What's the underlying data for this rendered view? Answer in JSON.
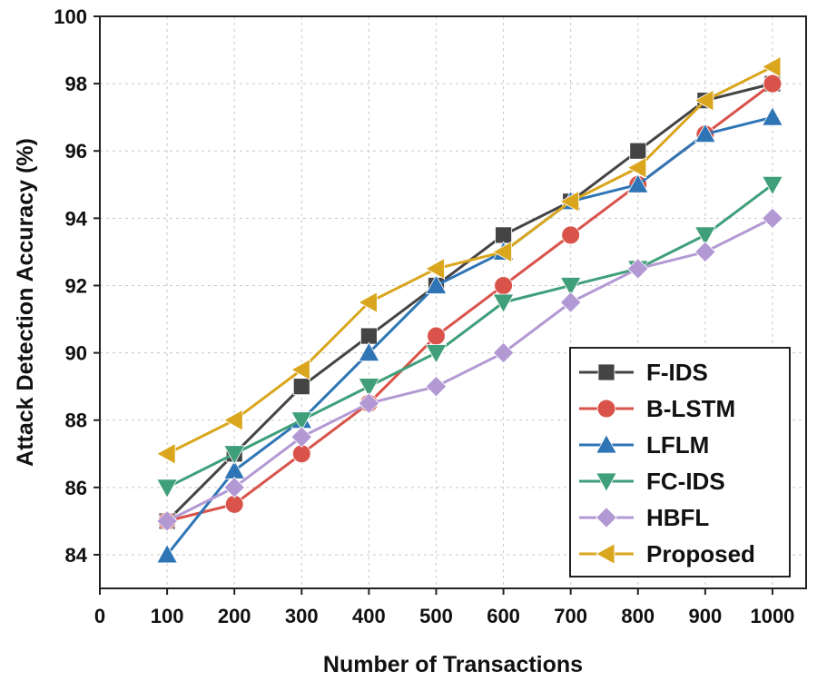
{
  "chart_data": {
    "type": "line",
    "title": "",
    "xlabel": "Number of Transactions",
    "ylabel": "Attack Detection Accuracy (%)",
    "x": [
      100,
      200,
      300,
      400,
      500,
      600,
      700,
      800,
      900,
      1000
    ],
    "xlim": [
      0,
      1050
    ],
    "ylim": [
      83,
      100
    ],
    "x_ticks": [
      0,
      100,
      200,
      300,
      400,
      500,
      600,
      700,
      800,
      900,
      1000
    ],
    "y_ticks": [
      84,
      86,
      88,
      90,
      92,
      94,
      96,
      98,
      100
    ],
    "grid": true,
    "legend_position": "bottom-right",
    "series": [
      {
        "name": "F-IDS",
        "color": "#444444",
        "marker": "square",
        "values": [
          85,
          87,
          89,
          90.5,
          92,
          93.5,
          94.5,
          96,
          97.5,
          98
        ]
      },
      {
        "name": "B-LSTM",
        "color": "#d9534a",
        "marker": "circle",
        "values": [
          85,
          85.5,
          87,
          88.5,
          90.5,
          92,
          93.5,
          95,
          96.5,
          98
        ]
      },
      {
        "name": "LFLM",
        "color": "#2f75b5",
        "marker": "triangle-up",
        "values": [
          84,
          86.5,
          88,
          90,
          92,
          93,
          94.5,
          95,
          96.5,
          97
        ]
      },
      {
        "name": "FC-IDS",
        "color": "#3f9f7a",
        "marker": "triangle-down",
        "values": [
          86,
          87,
          88,
          89,
          90,
          91.5,
          92,
          92.5,
          93.5,
          95
        ]
      },
      {
        "name": "HBFL",
        "color": "#b399d4",
        "marker": "diamond",
        "values": [
          85,
          86,
          87.5,
          88.5,
          89,
          90,
          91.5,
          92.5,
          93,
          94
        ]
      },
      {
        "name": "Proposed",
        "color": "#d9a61e",
        "marker": "triangle-left",
        "values": [
          87,
          88,
          89.5,
          91.5,
          92.5,
          93,
          94.5,
          95.5,
          97.5,
          98.5
        ]
      }
    ]
  }
}
